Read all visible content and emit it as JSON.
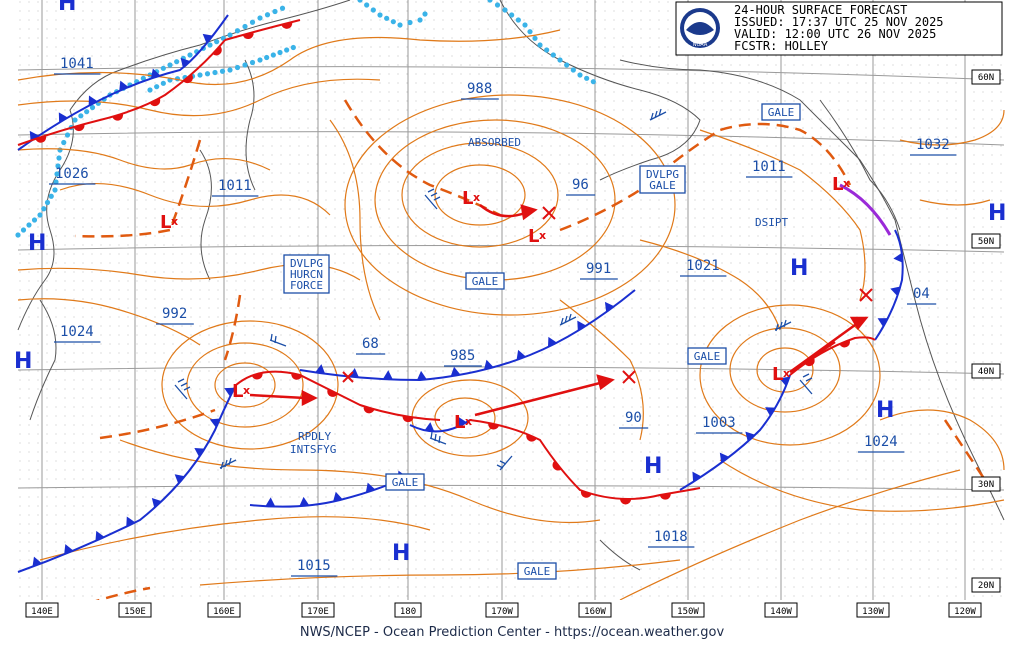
{
  "header": {
    "line1": "24-HOUR SURFACE FORECAST",
    "line2": "ISSUED: 17:37 UTC 25 NOV 2025",
    "line3": "VALID:  12:00 UTC 26 NOV 2025",
    "line4": "FCSTR:  HOLLEY",
    "logo": "NOAA"
  },
  "footer": "NWS/NCEP - Ocean Prediction Center - https://ocean.weather.gov",
  "lon_ticks": [
    "140E",
    "150E",
    "160E",
    "170E",
    "180",
    "170W",
    "160W",
    "150W",
    "140W",
    "130W",
    "120W"
  ],
  "lat_ticks": [
    "60N",
    "50N",
    "40N",
    "30N",
    "20N"
  ],
  "pressure_labels": [
    "1041",
    "1026",
    "1024",
    "992",
    "1011",
    "988",
    "96",
    "991",
    "1021",
    "1011",
    "1032",
    "04",
    "1024",
    "1003",
    "90",
    "985",
    "68",
    "1018",
    "1015"
  ],
  "high_symbol": "H",
  "low_symbol": "L",
  "low_cross": "x",
  "text_notes": [
    "ABSORBED",
    "DSIPT",
    "RPDLY",
    "INTSFYG"
  ],
  "boxed_labels": [
    [
      "GALE"
    ],
    [
      "DVLPG",
      "GALE"
    ],
    [
      "DVLPG",
      "HURCN",
      "FORCE"
    ],
    [
      "GALE"
    ],
    [
      "GALE"
    ],
    [
      "GALE"
    ],
    [
      "GALE"
    ]
  ],
  "colors": {
    "isobar": "#e07a1a",
    "cold_front": "#1a2fd0",
    "warm_front": "#e01010",
    "trough": "#e05a10",
    "ice": "#3ab3e8",
    "grid": "#9a9a9a",
    "coast": "#555555",
    "label": "#1c4fa8"
  }
}
